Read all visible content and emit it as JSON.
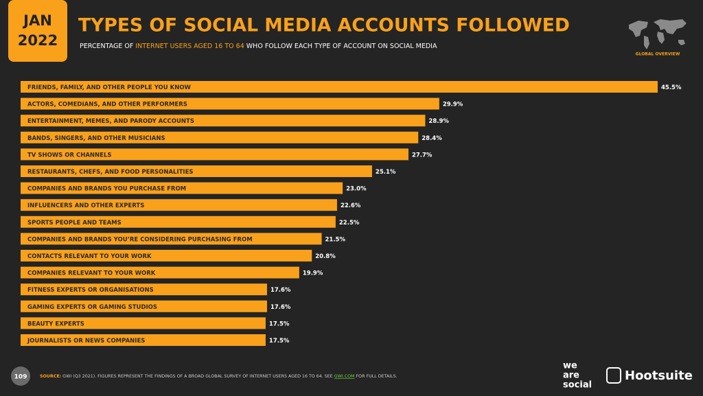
{
  "badge": {
    "month": "JAN",
    "year": "2022"
  },
  "subtitle_parts": [
    "PERCENTAGE OF ",
    "INTERNET USERS AGED 16 TO 64",
    " WHO FOLLOW EACH TYPE OF ACCOUNT ON SOCIAL MEDIA"
  ],
  "map_caption": "GLOBAL OVERVIEW",
  "footer": {
    "page_number": "109",
    "source_label": "SOURCE:",
    "source_text": " GWI (Q3 2021). FIGURES REPRESENT THE FINDINGS OF A BROAD GLOBAL SURVEY OF INTERNET USERS AGED 16 TO 64. SEE ",
    "source_link": "GWI.COM",
    "source_end": " FOR FULL DETAILS.",
    "logo_we": "we",
    "logo_are": "are",
    "logo_social": "social",
    "logo_hootsuite": "Hootsuite"
  },
  "chart_data": {
    "type": "bar",
    "orientation": "horizontal",
    "title": "TYPES OF SOCIAL MEDIA ACCOUNTS FOLLOWED",
    "color": "#f9a11b",
    "categories": [
      "FRIENDS, FAMILY, AND OTHER PEOPLE YOU KNOW",
      "ACTORS, COMEDIANS, AND OTHER PERFORMERS",
      "ENTERTAINMENT, MEMES, AND PARODY ACCOUNTS",
      "BANDS, SINGERS, AND OTHER MUSICIANS",
      "TV SHOWS OR CHANNELS",
      "RESTAURANTS, CHEFS, AND FOOD PERSONALITIES",
      "COMPANIES AND BRANDS YOU PURCHASE FROM",
      "INFLUENCERS AND OTHER EXPERTS",
      "SPORTS PEOPLE AND TEAMS",
      "COMPANIES AND BRANDS YOU’RE CONSIDERING PURCHASING FROM",
      "CONTACTS RELEVANT TO YOUR WORK",
      "COMPANIES RELEVANT TO YOUR WORK",
      "FITNESS EXPERTS OR ORGANISATIONS",
      "GAMING EXPERTS OR GAMING STUDIOS",
      "BEAUTY EXPERTS",
      "JOURNALISTS OR NEWS COMPANIES"
    ],
    "values": [
      45.5,
      29.9,
      28.9,
      28.4,
      27.7,
      25.1,
      23.0,
      22.6,
      22.5,
      21.5,
      20.8,
      19.9,
      17.6,
      17.6,
      17.5,
      17.5
    ],
    "value_labels": [
      "45.5%",
      "29.9%",
      "28.9%",
      "28.4%",
      "27.7%",
      "25.1%",
      "23.0%",
      "22.6%",
      "22.5%",
      "21.5%",
      "20.8%",
      "19.9%",
      "17.6%",
      "17.6%",
      "17.5%",
      "17.5%"
    ]
  }
}
